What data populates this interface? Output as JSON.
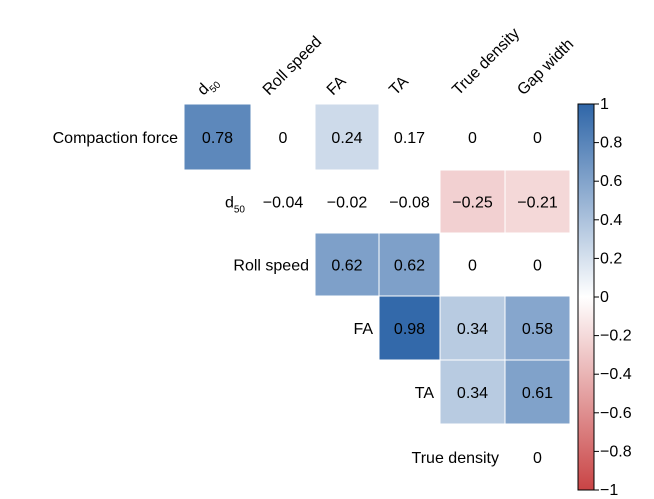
{
  "chart_data": {
    "type": "heatmap",
    "title": "",
    "row_labels": [
      {
        "text": "Compaction force"
      },
      {
        "text": "d",
        "sub": "50"
      },
      {
        "text": "Roll speed"
      },
      {
        "text": "FA"
      },
      {
        "text": "TA"
      },
      {
        "text": "True density"
      }
    ],
    "col_labels": [
      {
        "text": "d",
        "sub": "50"
      },
      {
        "text": "Roll speed"
      },
      {
        "text": "FA"
      },
      {
        "text": "TA"
      },
      {
        "text": "True density"
      },
      {
        "text": "Gap width"
      }
    ],
    "cells": [
      {
        "row": 0,
        "col": 0,
        "value": 0.78,
        "label": "0.78",
        "shaded": true
      },
      {
        "row": 0,
        "col": 1,
        "value": 0,
        "label": "0",
        "shaded": false
      },
      {
        "row": 0,
        "col": 2,
        "value": 0.24,
        "label": "0.24",
        "shaded": true
      },
      {
        "row": 0,
        "col": 3,
        "value": 0.17,
        "label": "0.17",
        "shaded": false
      },
      {
        "row": 0,
        "col": 4,
        "value": 0,
        "label": "0",
        "shaded": false
      },
      {
        "row": 0,
        "col": 5,
        "value": 0,
        "label": "0",
        "shaded": false
      },
      {
        "row": 1,
        "col": 1,
        "value": -0.04,
        "label": "−0.04",
        "shaded": false
      },
      {
        "row": 1,
        "col": 2,
        "value": -0.02,
        "label": "−0.02",
        "shaded": false
      },
      {
        "row": 1,
        "col": 3,
        "value": -0.08,
        "label": "−0.08",
        "shaded": false
      },
      {
        "row": 1,
        "col": 4,
        "value": -0.25,
        "label": "−0.25",
        "shaded": true
      },
      {
        "row": 1,
        "col": 5,
        "value": -0.21,
        "label": "−0.21",
        "shaded": true
      },
      {
        "row": 2,
        "col": 2,
        "value": 0.62,
        "label": "0.62",
        "shaded": true
      },
      {
        "row": 2,
        "col": 3,
        "value": 0.62,
        "label": "0.62",
        "shaded": true
      },
      {
        "row": 2,
        "col": 4,
        "value": 0,
        "label": "0",
        "shaded": false
      },
      {
        "row": 2,
        "col": 5,
        "value": 0,
        "label": "0",
        "shaded": false
      },
      {
        "row": 3,
        "col": 3,
        "value": 0.98,
        "label": "0.98",
        "shaded": true
      },
      {
        "row": 3,
        "col": 4,
        "value": 0.34,
        "label": "0.34",
        "shaded": true
      },
      {
        "row": 3,
        "col": 5,
        "value": 0.58,
        "label": "0.58",
        "shaded": true
      },
      {
        "row": 4,
        "col": 4,
        "value": 0.34,
        "label": "0.34",
        "shaded": true
      },
      {
        "row": 4,
        "col": 5,
        "value": 0.61,
        "label": "0.61",
        "shaded": true
      },
      {
        "row": 5,
        "col": 5,
        "value": 0,
        "label": "0",
        "shaded": false
      }
    ],
    "colorbar": {
      "range": [
        -1,
        1
      ],
      "ticks": [
        1,
        0.8,
        0.6,
        0.4,
        0.2,
        0,
        -0.2,
        -0.4,
        -0.6,
        -0.8,
        -1
      ],
      "tick_labels": [
        "1",
        "0.8",
        "0.6",
        "0.4",
        "0.2",
        "0",
        "−0.2",
        "−0.4",
        "−0.6",
        "−0.8",
        "−1"
      ],
      "colors": {
        "negative": "#c94445",
        "zero": "#ffffff",
        "positive": "#2f66a8"
      }
    }
  }
}
